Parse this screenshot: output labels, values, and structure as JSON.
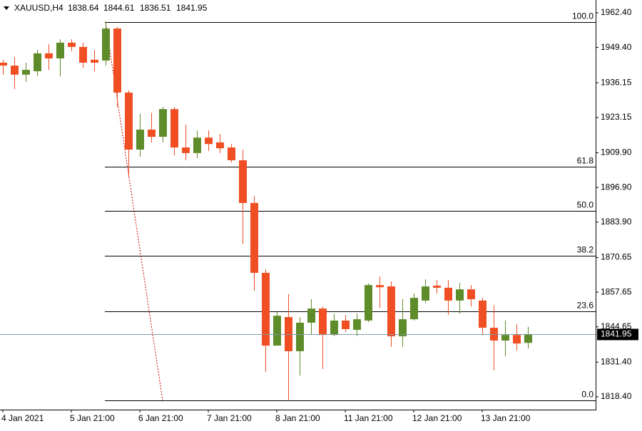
{
  "chart_data": {
    "type": "candlestick",
    "title": "XAUUSD,H4",
    "categories": [
      "4 Jan 2021",
      null,
      null,
      null,
      null,
      null,
      "5 Jan 21:00",
      null,
      null,
      null,
      null,
      null,
      "6 Jan 21:00",
      null,
      null,
      null,
      null,
      null,
      "7 Jan 21:00",
      null,
      null,
      null,
      null,
      null,
      "8 Jan 21:00",
      null,
      null,
      null,
      null,
      null,
      "11 Jan 21:00",
      null,
      null,
      null,
      null,
      null,
      "12 Jan 21:00",
      null,
      null,
      null,
      null,
      null,
      "13 Jan 21:00",
      null,
      null,
      null,
      null
    ],
    "series": {
      "up_color": "#5e8c2a",
      "down_color": "#f04e23",
      "open": [
        1943.7,
        1942.6,
        1939.2,
        1940.5,
        1947.2,
        1945.3,
        1951.2,
        1949.6,
        1944.8,
        1944.5,
        1956.5,
        1932.5,
        1911.1,
        1918.6,
        1915.9,
        1926.3,
        1911.9,
        1909.8,
        1915.6,
        1913.8,
        1911.9,
        1907.1,
        1891.1,
        1864.9,
        1837.6,
        1848.3,
        1835.5,
        1846.2,
        1851.5,
        1841.6,
        1847.0,
        1843.5,
        1847.0,
        1860.3,
        1859.8,
        1841.1,
        1847.5,
        1854.5,
        1860.1,
        1859.3,
        1854.5,
        1858.7,
        1854.5,
        1844.3,
        1839.5,
        1841.6,
        1838.64
      ],
      "high": [
        1944.8,
        1945.8,
        1943.7,
        1948.5,
        1950.6,
        1952.5,
        1952.5,
        1951.2,
        1948.5,
        1959.0,
        1957.1,
        1933.3,
        1924.5,
        1924.9,
        1927.1,
        1927.1,
        1920.4,
        1918.3,
        1918.3,
        1917.0,
        1913.2,
        1911.1,
        1893.7,
        1866.2,
        1850.2,
        1856.9,
        1848.3,
        1855.0,
        1852.3,
        1849.6,
        1849.1,
        1849.6,
        1860.9,
        1863.5,
        1861.7,
        1855.0,
        1857.1,
        1862.5,
        1862.2,
        1862.2,
        1861.1,
        1860.3,
        1855.5,
        1852.8,
        1847.0,
        1845.6,
        1844.61
      ],
      "low": [
        1939.2,
        1933.8,
        1936.5,
        1938.6,
        1941.0,
        1938.6,
        1948.0,
        1941.8,
        1940.5,
        1942.6,
        1927.1,
        1901.0,
        1908.4,
        1913.8,
        1913.8,
        1909.0,
        1907.1,
        1907.9,
        1910.6,
        1909.8,
        1906.3,
        1875.6,
        1858.2,
        1827.7,
        1837.6,
        1817.0,
        1826.4,
        1841.6,
        1828.8,
        1841.1,
        1842.7,
        1841.1,
        1846.4,
        1851.8,
        1837.1,
        1837.1,
        1847.0,
        1853.6,
        1857.1,
        1849.1,
        1849.6,
        1852.3,
        1841.6,
        1828.3,
        1833.6,
        1835.8,
        1836.51
      ],
      "close": [
        1942.6,
        1939.2,
        1941.0,
        1947.2,
        1945.3,
        1951.2,
        1949.6,
        1943.7,
        1943.7,
        1956.5,
        1932.5,
        1911.1,
        1918.6,
        1915.9,
        1926.3,
        1911.9,
        1909.8,
        1915.6,
        1913.2,
        1911.6,
        1907.1,
        1891.1,
        1864.9,
        1837.6,
        1848.8,
        1835.5,
        1846.2,
        1851.5,
        1841.6,
        1847.0,
        1843.8,
        1847.5,
        1860.3,
        1859.5,
        1841.1,
        1847.5,
        1855.5,
        1859.8,
        1859.3,
        1854.5,
        1858.7,
        1855.0,
        1844.3,
        1839.5,
        1841.6,
        1838.4,
        1841.95
      ]
    },
    "ylim": [
      1813.6,
      1967.2
    ],
    "yticks": [
      {
        "value": 1962.4,
        "label": "1962.40"
      },
      {
        "value": 1949.4,
        "label": "1949.40"
      },
      {
        "value": 1936.15,
        "label": "1936.15"
      },
      {
        "value": 1923.15,
        "label": "1923.15"
      },
      {
        "value": 1909.9,
        "label": "1909.90"
      },
      {
        "value": 1896.9,
        "label": "1896.90"
      },
      {
        "value": 1883.9,
        "label": "1883.90"
      },
      {
        "value": 1870.65,
        "label": "1870.65"
      },
      {
        "value": 1857.65,
        "label": "1857.65"
      },
      {
        "value": 1844.65,
        "label": "1844.65"
      },
      {
        "value": 1831.4,
        "label": "1831.40"
      },
      {
        "value": 1818.4,
        "label": "1818.40"
      }
    ],
    "fibonacci": {
      "high": 1959.0,
      "low": 1817.0,
      "color": "#000000",
      "trend_color": "#cc0000",
      "levels": [
        {
          "value": 100,
          "label": "100.0"
        },
        {
          "value": 61.8,
          "label": "61.8"
        },
        {
          "value": 50,
          "label": "50.0"
        },
        {
          "value": 38.2,
          "label": "38.2"
        },
        {
          "value": 23.6,
          "label": "23.6"
        },
        {
          "value": 0,
          "label": "0.0"
        }
      ]
    },
    "current_price_color": "#7f98aa"
  }
}
